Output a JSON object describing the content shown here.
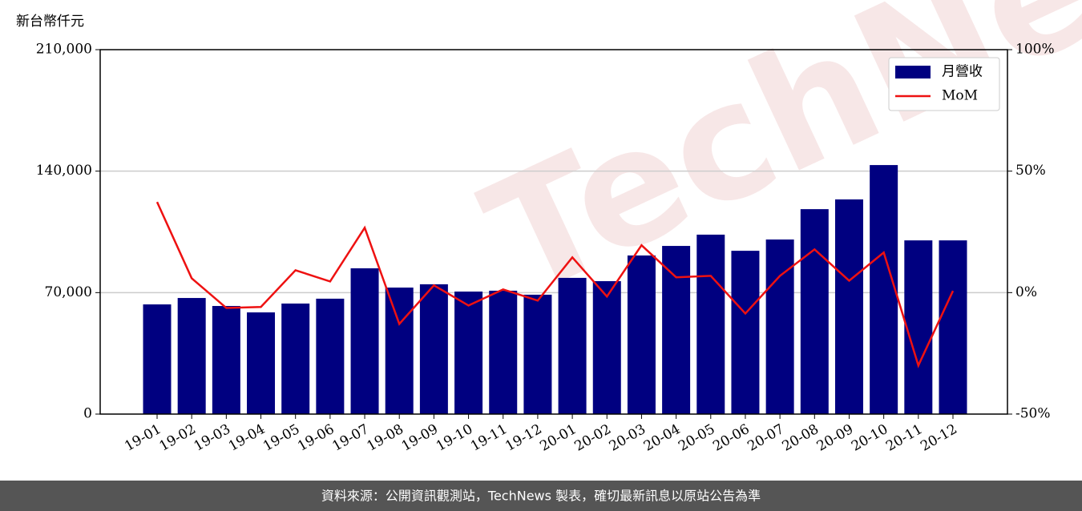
{
  "chart_data": {
    "type": "bar",
    "y_label": "新台幣仟元",
    "watermark": "TechNews",
    "categories": [
      "19-01",
      "19-02",
      "19-03",
      "19-04",
      "19-05",
      "19-06",
      "19-07",
      "19-08",
      "19-09",
      "19-10",
      "19-11",
      "19-12",
      "20-01",
      "20-02",
      "20-03",
      "20-04",
      "20-05",
      "20-06",
      "20-07",
      "20-08",
      "20-09",
      "20-10",
      "20-11",
      "20-12"
    ],
    "series": [
      {
        "name": "月營收",
        "type": "bar",
        "color": "#000080",
        "values": [
          63200,
          66900,
          62300,
          58600,
          63700,
          66500,
          84000,
          72900,
          74800,
          70600,
          71100,
          68800,
          78500,
          76600,
          91400,
          96900,
          103400,
          94100,
          100600,
          118100,
          123700,
          143500,
          100100,
          100100
        ]
      },
      {
        "name": "MoM",
        "type": "line",
        "axis": "y2",
        "color": "#ee1111",
        "values": [
          37.3,
          5.9,
          -6.3,
          -5.9,
          9.2,
          4.6,
          26.7,
          -12.9,
          3.0,
          -5.3,
          1.3,
          -3.3,
          14.5,
          -1.6,
          19.5,
          6.3,
          6.9,
          -8.6,
          6.9,
          17.8,
          4.9,
          16.5,
          -30,
          0.7
        ]
      }
    ],
    "ylim": [
      0,
      210000
    ],
    "yticks": [
      0,
      {
        "value": 70000,
        "label": "70,000"
      },
      {
        "value": 140000,
        "label": "140,000"
      },
      {
        "value": 210000,
        "label": "210,000"
      }
    ],
    "y2lim": [
      -50,
      100
    ],
    "y2ticks": [
      {
        "value": -50,
        "label": "-50%"
      },
      {
        "value": 0,
        "label": "0%"
      },
      {
        "value": 50,
        "label": "50%"
      },
      {
        "value": 100,
        "label": "100%"
      }
    ],
    "grid": true,
    "legend": "upper right"
  },
  "footer": "資料來源：公開資訊觀測站，TechNews 製表，確切最新訊息以原站公告為準"
}
